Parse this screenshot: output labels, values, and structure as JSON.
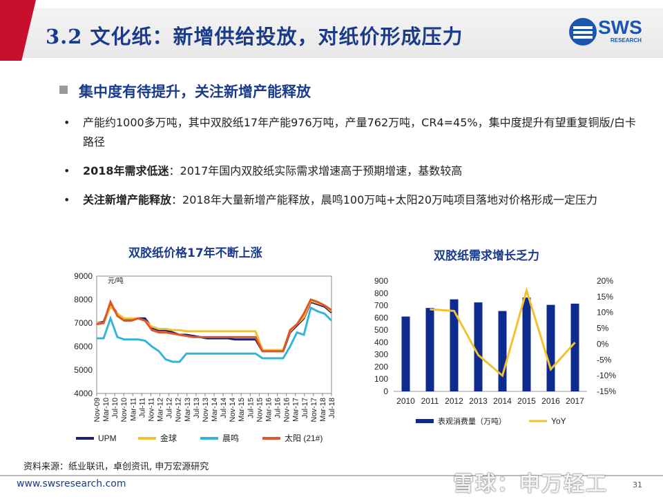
{
  "header": {
    "title": "3.2 文化纸：新增供给投放，对纸价形成压力",
    "logo_text": "SWS",
    "logo_sub": "RESEARCH"
  },
  "section": {
    "heading": "集中度有待提升，关注新增产能释放"
  },
  "bullets": [
    {
      "bold": "",
      "text": "产能约1000多万吨，其中双胶纸17年产能976万吨，产量762万吨，CR4=45%，集中度提升有望重复铜版/白卡路径"
    },
    {
      "bold": "2018年需求低迷",
      "text": "：2017年国内双胶纸实际需求增速高于预期增速，基数较高"
    },
    {
      "bold": "关注新增产能释放",
      "text": "：2018年大量新增产能释放，晨鸣100万吨+太阳20万吨项目落地对价格形成一定压力"
    }
  ],
  "bullet_glyph": "•",
  "footer": {
    "source": "资料来源：纸业联讯，卓创资讯, 申万宏源研究",
    "url": "www.swsresearch.com",
    "page": "31",
    "watermark": "雪球：申万轻工"
  },
  "colors": {
    "title_blue": "#1a3b8a",
    "upm": "#1f1f6e",
    "jinqiu": "#f2c12e",
    "chenming": "#36b4d8",
    "taiyang": "#e0552a",
    "bar": "#0d2a8f",
    "yoy": "#f2c12e"
  },
  "chart_data": [
    {
      "type": "line",
      "title": "双胶纸价格17年不断上涨",
      "unit_label": "元/吨",
      "ylim": [
        4000,
        9000
      ],
      "yticks": [
        4000,
        5000,
        6000,
        7000,
        8000,
        9000
      ],
      "xticks": [
        "Nov-09",
        "Mar-10",
        "Jul-10",
        "Nov-10",
        "Mar-11",
        "Jul-11",
        "Nov-11",
        "Mar-12",
        "Jul-12",
        "Nov-12",
        "Mar-13",
        "Jul-13",
        "Nov-13",
        "Mar-14",
        "Jul-14",
        "Nov-14",
        "Mar-15",
        "Jul-15",
        "Nov-15",
        "Mar-16",
        "Jul-16",
        "Nov-16",
        "Mar-17",
        "Jul-17",
        "Nov-17",
        "Mar-18",
        "Jul-18"
      ],
      "legend_position": "bottom",
      "series": [
        {
          "name": "UPM",
          "color_key": "upm",
          "values": [
            7000,
            7050,
            7800,
            7400,
            7150,
            7150,
            7200,
            7200,
            6800,
            6700,
            6700,
            6600,
            6500,
            6500,
            6450,
            6400,
            6350,
            6350,
            6350,
            6350,
            6300,
            6300,
            6300,
            6300,
            5800,
            5800,
            5800,
            5800,
            6600,
            6900,
            7200,
            7900,
            7800,
            7700,
            7450
          ]
        },
        {
          "name": "金球",
          "color_key": "jinqiu",
          "values": [
            7000,
            7000,
            7700,
            7400,
            7200,
            7200,
            7200,
            7100,
            6850,
            6750,
            6750,
            6700,
            6700,
            6650,
            6650,
            6650,
            6650,
            6650,
            6650,
            6650,
            6650,
            6650,
            6650,
            6650,
            5850,
            5850,
            5850,
            5850,
            6650,
            6950,
            7250,
            7950,
            7850,
            7750,
            7500
          ]
        },
        {
          "name": "晨鸣",
          "color_key": "chenming",
          "values": [
            6350,
            6350,
            7200,
            6400,
            6300,
            6300,
            6300,
            6250,
            6000,
            5800,
            5450,
            5350,
            5350,
            5700,
            5700,
            5700,
            5700,
            5700,
            5700,
            5700,
            5700,
            5700,
            5700,
            5700,
            5500,
            5500,
            5500,
            5500,
            6000,
            6600,
            6500,
            7650,
            7500,
            7400,
            7100
          ]
        },
        {
          "name": "太阳 (21#)",
          "color_key": "taiyang",
          "values": [
            6950,
            7000,
            7900,
            7300,
            7100,
            7100,
            7200,
            7100,
            6700,
            6600,
            6600,
            6550,
            6500,
            6450,
            6400,
            6400,
            6400,
            6400,
            6400,
            6400,
            6400,
            6400,
            6400,
            6400,
            5800,
            5800,
            5800,
            5800,
            6700,
            6950,
            7400,
            8000,
            7900,
            7750,
            7550
          ]
        }
      ]
    },
    {
      "type": "bar",
      "title": "双胶纸需求增长乏力",
      "categories": [
        "2010",
        "2011",
        "2012",
        "2013",
        "2014",
        "2015",
        "2016",
        "2017"
      ],
      "ylim": [
        0,
        900
      ],
      "yticks": [
        0,
        100,
        200,
        300,
        400,
        500,
        600,
        700,
        800,
        900
      ],
      "y2lim": [
        -15,
        20
      ],
      "y2ticks": [
        "20%",
        "15%",
        "10%",
        "5%",
        "0%",
        "-5%",
        "-10%",
        "-15%"
      ],
      "legend_position": "bottom",
      "series": [
        {
          "name": "表观消费量（万吨）",
          "type": "bar",
          "color_key": "bar",
          "values": [
            610,
            680,
            750,
            725,
            655,
            765,
            705,
            715
          ]
        },
        {
          "name": "YoY",
          "type": "line",
          "axis": "right",
          "color_key": "yoy",
          "values": [
            null,
            11,
            10.5,
            -3.5,
            -10,
            17,
            -8,
            0.5
          ]
        }
      ]
    }
  ]
}
